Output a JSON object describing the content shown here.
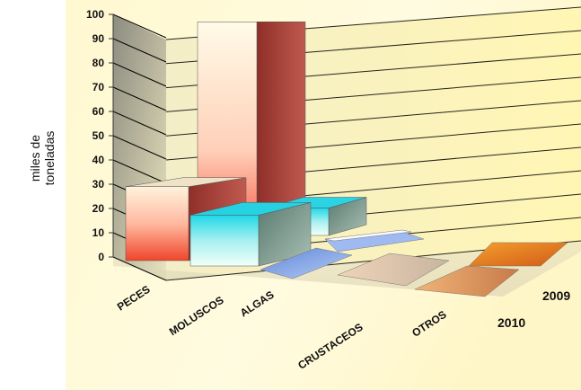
{
  "chart_data": {
    "type": "bar",
    "subtype": "3d-column",
    "categories": [
      "PECES",
      "MOLUSCOS",
      "ALGAS",
      "CRUSTACEOS",
      "OTROS"
    ],
    "series": [
      {
        "name": "2010",
        "values": [
          29,
          18,
          1,
          0.3,
          0.3
        ],
        "color": "#36d0d8"
      },
      {
        "name": "2009",
        "values": [
          22,
          91,
          15,
          3,
          0.5
        ],
        "color": "#c05a50"
      }
    ],
    "ylabel": [
      "miles de",
      "toneladas"
    ],
    "ylim": [
      0,
      100
    ],
    "ytick_step": 10,
    "grid": true,
    "colors": {
      "peces_front": "#f25a3c",
      "moluscos_2009_front": "#ff8a78",
      "moluscos_2009_side": "#a2443c",
      "cyan": "#36d0d8",
      "light_blue": "#8fb0e8",
      "orange": "#e07a2a",
      "plot_bg": "#fffbd8"
    }
  }
}
